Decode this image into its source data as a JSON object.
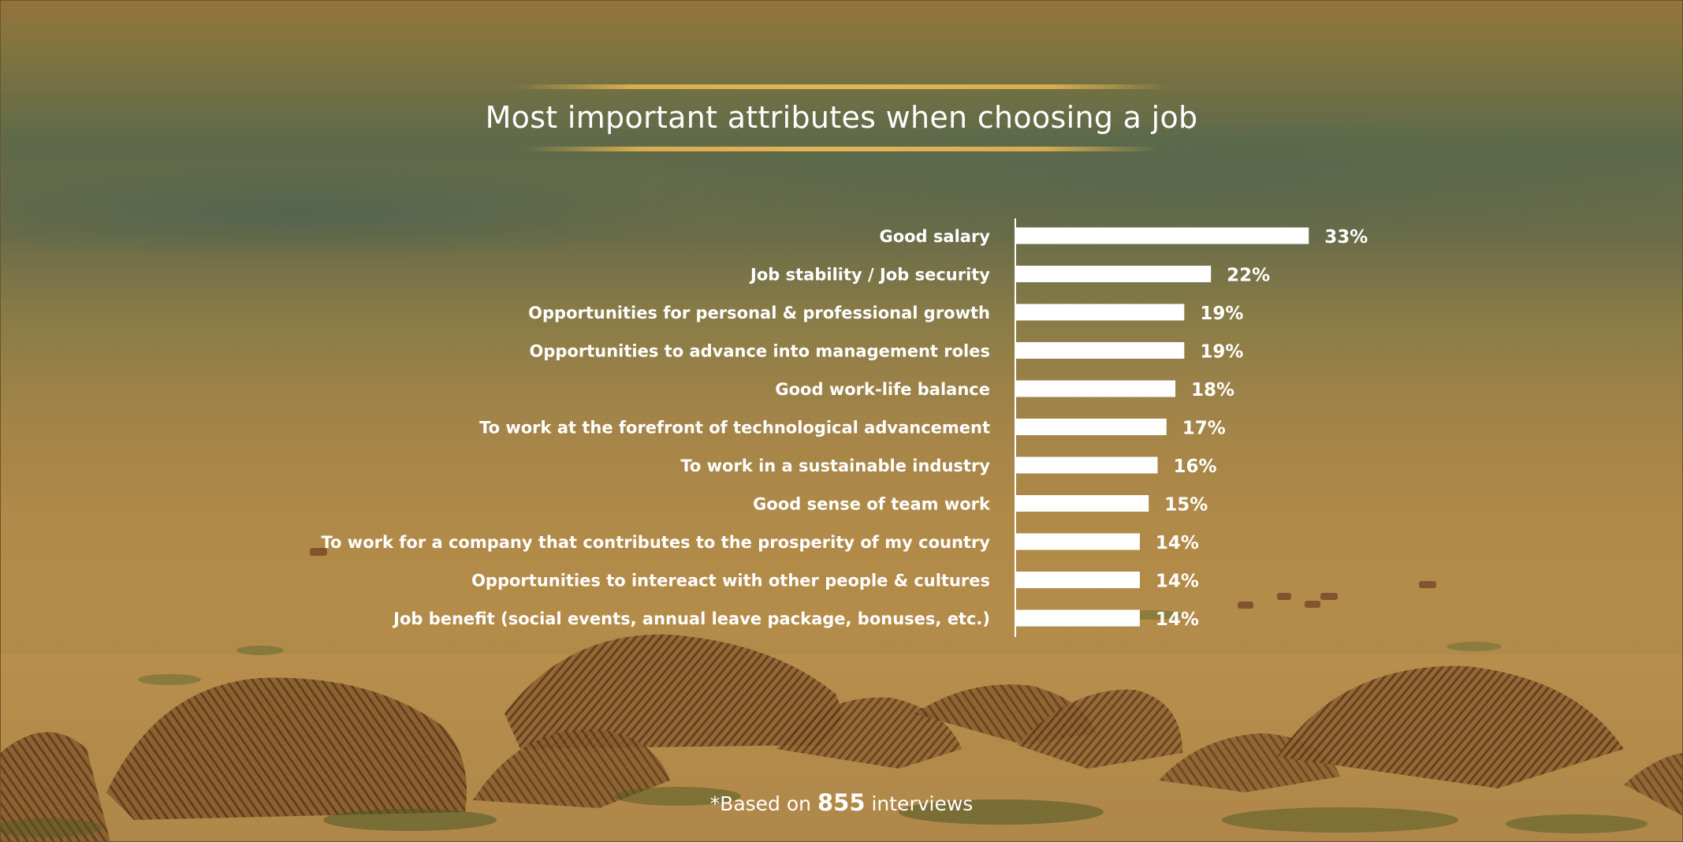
{
  "chart_data": {
    "type": "bar",
    "orientation": "horizontal",
    "title": "Most important attributes when choosing a job",
    "categories": [
      "Good salary",
      "Job stability / Job security",
      "Opportunities for personal & professional growth",
      "Opportunities to advance into management roles",
      "Good work-life balance",
      "To work at the forefront of technological advancement",
      "To work in a sustainable industry",
      "Good sense of team work",
      "To work for a company that contributes to the prosperity of my country",
      "Opportunities to intereact with other people & cultures",
      "Job benefit (social events, annual leave package, bonuses, etc.)"
    ],
    "values": [
      33,
      22,
      19,
      19,
      18,
      17,
      16,
      15,
      14,
      14,
      14
    ],
    "value_labels": [
      "33%",
      "22%",
      "19%",
      "19%",
      "18%",
      "17%",
      "16%",
      "15%",
      "14%",
      "14%",
      "14%"
    ],
    "unit": "%",
    "bar_color": "#ffffff",
    "grid": false,
    "legend": "none"
  },
  "footnote": {
    "prefix": "*Based on",
    "count": "855",
    "suffix": "interviews"
  },
  "colors": {
    "title_rule": "#d7ad4f",
    "text": "#ffffff"
  }
}
